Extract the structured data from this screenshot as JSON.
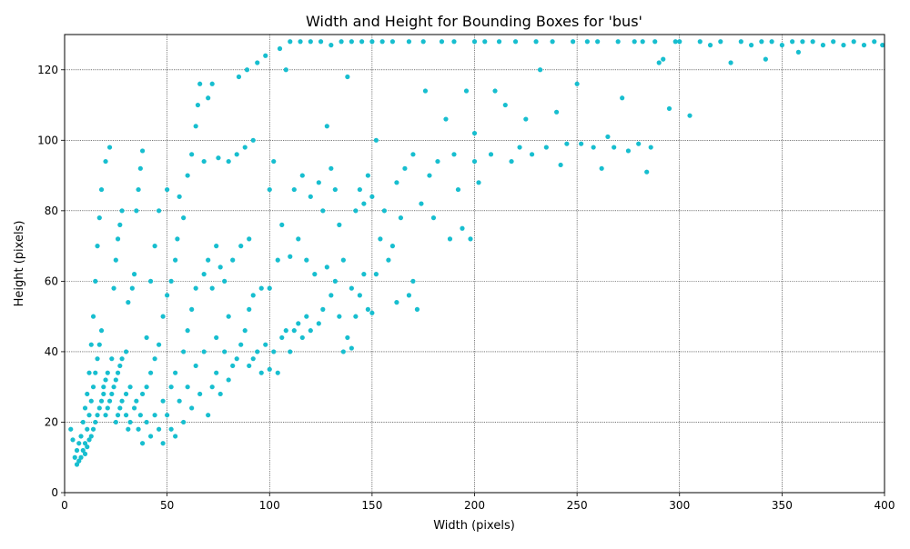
{
  "chart_data": {
    "type": "scatter",
    "title": "Width and Height for Bounding Boxes for 'bus'",
    "xlabel": "Width (pixels)",
    "ylabel": "Height (pixels)",
    "xlim": [
      0,
      400
    ],
    "ylim": [
      0,
      130
    ],
    "xticks": [
      0,
      50,
      100,
      150,
      200,
      250,
      300,
      350,
      400
    ],
    "yticks": [
      0,
      20,
      40,
      60,
      80,
      100,
      120
    ],
    "grid": true,
    "legend": "none",
    "color": "#17becf",
    "series": [
      {
        "points": [
          [
            3,
            18
          ],
          [
            4,
            15
          ],
          [
            5,
            10
          ],
          [
            6,
            8
          ],
          [
            6,
            12
          ],
          [
            7,
            9
          ],
          [
            7,
            14
          ],
          [
            8,
            10
          ],
          [
            8,
            16
          ],
          [
            9,
            12
          ],
          [
            9,
            20
          ],
          [
            10,
            11
          ],
          [
            10,
            14
          ],
          [
            10,
            24
          ],
          [
            11,
            13
          ],
          [
            11,
            18
          ],
          [
            11,
            28
          ],
          [
            12,
            15
          ],
          [
            12,
            22
          ],
          [
            12,
            34
          ],
          [
            13,
            16
          ],
          [
            13,
            26
          ],
          [
            13,
            42
          ],
          [
            14,
            18
          ],
          [
            14,
            30
          ],
          [
            14,
            50
          ],
          [
            15,
            20
          ],
          [
            15,
            34
          ],
          [
            15,
            60
          ],
          [
            16,
            22
          ],
          [
            16,
            38
          ],
          [
            16,
            70
          ],
          [
            17,
            24
          ],
          [
            17,
            42
          ],
          [
            17,
            78
          ],
          [
            18,
            26
          ],
          [
            18,
            46
          ],
          [
            18,
            86
          ],
          [
            19,
            28
          ],
          [
            19,
            30
          ],
          [
            20,
            22
          ],
          [
            20,
            32
          ],
          [
            20,
            94
          ],
          [
            21,
            24
          ],
          [
            21,
            34
          ],
          [
            22,
            26
          ],
          [
            22,
            98
          ],
          [
            23,
            28
          ],
          [
            23,
            38
          ],
          [
            24,
            30
          ],
          [
            24,
            58
          ],
          [
            25,
            20
          ],
          [
            25,
            32
          ],
          [
            25,
            66
          ],
          [
            26,
            22
          ],
          [
            26,
            34
          ],
          [
            26,
            72
          ],
          [
            27,
            24
          ],
          [
            27,
            36
          ],
          [
            27,
            76
          ],
          [
            28,
            26
          ],
          [
            28,
            38
          ],
          [
            28,
            80
          ],
          [
            30,
            22
          ],
          [
            30,
            28
          ],
          [
            30,
            40
          ],
          [
            31,
            18
          ],
          [
            31,
            54
          ],
          [
            32,
            20
          ],
          [
            32,
            30
          ],
          [
            33,
            58
          ],
          [
            34,
            24
          ],
          [
            34,
            62
          ],
          [
            35,
            26
          ],
          [
            35,
            80
          ],
          [
            36,
            18
          ],
          [
            36,
            86
          ],
          [
            37,
            22
          ],
          [
            37,
            92
          ],
          [
            38,
            14
          ],
          [
            38,
            28
          ],
          [
            38,
            97
          ],
          [
            40,
            20
          ],
          [
            40,
            30
          ],
          [
            40,
            44
          ],
          [
            42,
            16
          ],
          [
            42,
            34
          ],
          [
            42,
            60
          ],
          [
            44,
            22
          ],
          [
            44,
            38
          ],
          [
            44,
            70
          ],
          [
            46,
            18
          ],
          [
            46,
            42
          ],
          [
            46,
            80
          ],
          [
            48,
            14
          ],
          [
            48,
            26
          ],
          [
            48,
            50
          ],
          [
            50,
            22
          ],
          [
            50,
            56
          ],
          [
            50,
            86
          ],
          [
            52,
            18
          ],
          [
            52,
            30
          ],
          [
            52,
            60
          ],
          [
            54,
            16
          ],
          [
            54,
            34
          ],
          [
            54,
            66
          ],
          [
            55,
            72
          ],
          [
            56,
            26
          ],
          [
            56,
            84
          ],
          [
            58,
            20
          ],
          [
            58,
            40
          ],
          [
            58,
            78
          ],
          [
            60,
            30
          ],
          [
            60,
            46
          ],
          [
            60,
            90
          ],
          [
            62,
            24
          ],
          [
            62,
            52
          ],
          [
            62,
            96
          ],
          [
            64,
            36
          ],
          [
            64,
            58
          ],
          [
            64,
            104
          ],
          [
            65,
            110
          ],
          [
            66,
            28
          ],
          [
            66,
            116
          ],
          [
            68,
            40
          ],
          [
            68,
            62
          ],
          [
            68,
            94
          ],
          [
            70,
            22
          ],
          [
            70,
            66
          ],
          [
            70,
            112
          ],
          [
            72,
            30
          ],
          [
            72,
            58
          ],
          [
            72,
            116
          ],
          [
            74,
            34
          ],
          [
            74,
            44
          ],
          [
            74,
            70
          ],
          [
            75,
            95
          ],
          [
            76,
            28
          ],
          [
            76,
            64
          ],
          [
            78,
            40
          ],
          [
            78,
            60
          ],
          [
            80,
            32
          ],
          [
            80,
            50
          ],
          [
            80,
            94
          ],
          [
            82,
            36
          ],
          [
            82,
            66
          ],
          [
            84,
            38
          ],
          [
            84,
            96
          ],
          [
            85,
            118
          ],
          [
            86,
            42
          ],
          [
            86,
            70
          ],
          [
            88,
            46
          ],
          [
            88,
            98
          ],
          [
            89,
            120
          ],
          [
            90,
            36
          ],
          [
            90,
            52
          ],
          [
            90,
            72
          ],
          [
            92,
            38
          ],
          [
            92,
            56
          ],
          [
            92,
            100
          ],
          [
            94,
            40
          ],
          [
            94,
            122
          ],
          [
            96,
            34
          ],
          [
            96,
            58
          ],
          [
            98,
            42
          ],
          [
            98,
            124
          ],
          [
            100,
            35
          ],
          [
            100,
            58
          ],
          [
            100,
            86
          ],
          [
            102,
            40
          ],
          [
            102,
            94
          ],
          [
            104,
            34
          ],
          [
            104,
            66
          ],
          [
            105,
            126
          ],
          [
            106,
            44
          ],
          [
            106,
            76
          ],
          [
            108,
            46
          ],
          [
            108,
            120
          ],
          [
            110,
            40
          ],
          [
            110,
            67
          ],
          [
            110,
            128
          ],
          [
            112,
            46
          ],
          [
            112,
            86
          ],
          [
            114,
            48
          ],
          [
            114,
            72
          ],
          [
            115,
            128
          ],
          [
            116,
            44
          ],
          [
            116,
            90
          ],
          [
            118,
            50
          ],
          [
            118,
            66
          ],
          [
            120,
            46
          ],
          [
            120,
            84
          ],
          [
            120,
            128
          ],
          [
            122,
            62
          ],
          [
            124,
            48
          ],
          [
            124,
            88
          ],
          [
            125,
            128
          ],
          [
            126,
            52
          ],
          [
            126,
            80
          ],
          [
            128,
            64
          ],
          [
            128,
            104
          ],
          [
            130,
            56
          ],
          [
            130,
            92
          ],
          [
            130,
            127
          ],
          [
            132,
            60
          ],
          [
            132,
            86
          ],
          [
            134,
            50
          ],
          [
            134,
            76
          ],
          [
            135,
            128
          ],
          [
            136,
            40
          ],
          [
            136,
            66
          ],
          [
            138,
            44
          ],
          [
            138,
            118
          ],
          [
            140,
            41
          ],
          [
            140,
            58
          ],
          [
            140,
            128
          ],
          [
            142,
            50
          ],
          [
            142,
            80
          ],
          [
            144,
            56
          ],
          [
            144,
            86
          ],
          [
            145,
            128
          ],
          [
            146,
            62
          ],
          [
            146,
            82
          ],
          [
            148,
            52
          ],
          [
            148,
            90
          ],
          [
            150,
            51
          ],
          [
            150,
            84
          ],
          [
            150,
            128
          ],
          [
            152,
            62
          ],
          [
            152,
            100
          ],
          [
            154,
            72
          ],
          [
            155,
            128
          ],
          [
            156,
            80
          ],
          [
            158,
            66
          ],
          [
            160,
            70
          ],
          [
            160,
            128
          ],
          [
            162,
            54
          ],
          [
            162,
            88
          ],
          [
            164,
            78
          ],
          [
            166,
            92
          ],
          [
            168,
            56
          ],
          [
            168,
            128
          ],
          [
            170,
            60
          ],
          [
            170,
            96
          ],
          [
            172,
            52
          ],
          [
            174,
            82
          ],
          [
            175,
            128
          ],
          [
            176,
            114
          ],
          [
            178,
            90
          ],
          [
            180,
            78
          ],
          [
            182,
            94
          ],
          [
            184,
            128
          ],
          [
            186,
            106
          ],
          [
            188,
            72
          ],
          [
            190,
            96
          ],
          [
            190,
            128
          ],
          [
            192,
            86
          ],
          [
            194,
            75
          ],
          [
            196,
            114
          ],
          [
            198,
            72
          ],
          [
            200,
            94
          ],
          [
            200,
            102
          ],
          [
            200,
            128
          ],
          [
            202,
            88
          ],
          [
            205,
            128
          ],
          [
            208,
            96
          ],
          [
            210,
            114
          ],
          [
            212,
            128
          ],
          [
            215,
            110
          ],
          [
            218,
            94
          ],
          [
            220,
            128
          ],
          [
            222,
            98
          ],
          [
            225,
            106
          ],
          [
            228,
            96
          ],
          [
            230,
            128
          ],
          [
            232,
            120
          ],
          [
            235,
            98
          ],
          [
            238,
            128
          ],
          [
            240,
            108
          ],
          [
            242,
            93
          ],
          [
            245,
            99
          ],
          [
            248,
            128
          ],
          [
            250,
            116
          ],
          [
            252,
            99
          ],
          [
            255,
            128
          ],
          [
            258,
            98
          ],
          [
            260,
            128
          ],
          [
            262,
            92
          ],
          [
            265,
            101
          ],
          [
            268,
            98
          ],
          [
            270,
            128
          ],
          [
            272,
            112
          ],
          [
            275,
            97
          ],
          [
            278,
            128
          ],
          [
            280,
            99
          ],
          [
            282,
            128
          ],
          [
            284,
            91
          ],
          [
            286,
            98
          ],
          [
            288,
            128
          ],
          [
            290,
            122
          ],
          [
            292,
            123
          ],
          [
            295,
            109
          ],
          [
            298,
            128
          ],
          [
            300,
            128
          ],
          [
            305,
            107
          ],
          [
            310,
            128
          ],
          [
            315,
            127
          ],
          [
            320,
            128
          ],
          [
            325,
            122
          ],
          [
            330,
            128
          ],
          [
            335,
            127
          ],
          [
            340,
            128
          ],
          [
            342,
            123
          ],
          [
            345,
            128
          ],
          [
            350,
            127
          ],
          [
            355,
            128
          ],
          [
            358,
            125
          ],
          [
            360,
            128
          ],
          [
            365,
            128
          ],
          [
            370,
            127
          ],
          [
            375,
            128
          ],
          [
            380,
            127
          ],
          [
            385,
            128
          ],
          [
            390,
            127
          ],
          [
            395,
            128
          ],
          [
            399,
            127
          ]
        ]
      }
    ]
  }
}
